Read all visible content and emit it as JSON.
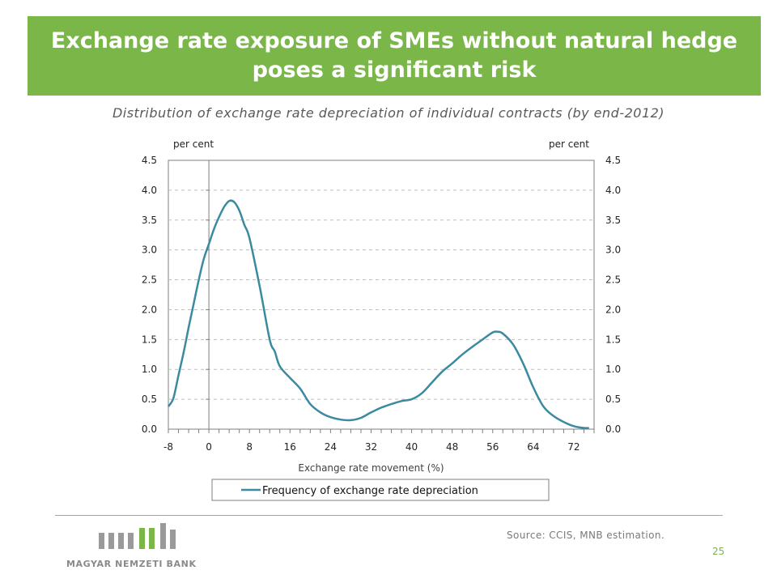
{
  "header": {
    "title_line1": "Exchange rate exposure of SMEs without natural hedge",
    "title_line2": "poses a significant risk"
  },
  "subtitle": "Distribution of exchange rate depreciation of individual contracts (by end-2012)",
  "colors": {
    "title_band": "#7ab648",
    "series_line": "#3a8aa0"
  },
  "chart_data": {
    "type": "line",
    "title": "",
    "xlabel": "Exchange rate movement (%)",
    "ylabel_left": "per cent",
    "ylabel_right": "per cent",
    "xlim": [
      -8,
      76
    ],
    "ylim": [
      0,
      4.5
    ],
    "x_ticks": [
      "-8",
      "0",
      "8",
      "16",
      "24",
      "32",
      "40",
      "48",
      "56",
      "64",
      "72"
    ],
    "y_ticks": [
      "0.0",
      "0.5",
      "1.0",
      "1.5",
      "2.0",
      "2.5",
      "3.0",
      "3.5",
      "4.0",
      "4.5"
    ],
    "legend_position": "bottom",
    "series": [
      {
        "name": "Frequency of exchange rate depreciation",
        "x": [
          -8,
          -7,
          -6,
          -5,
          -4,
          -3,
          -2,
          -1,
          0,
          1,
          2,
          3,
          4,
          5,
          6,
          7,
          8,
          10,
          12,
          13,
          14,
          16,
          18,
          20,
          22,
          24,
          26,
          28,
          30,
          32,
          34,
          36,
          38,
          40,
          42,
          44,
          46,
          48,
          50,
          52,
          54,
          56,
          57,
          58,
          60,
          62,
          64,
          66,
          68,
          70,
          72,
          74,
          75
        ],
        "values": [
          0.38,
          0.52,
          0.9,
          1.28,
          1.7,
          2.1,
          2.5,
          2.85,
          3.1,
          3.35,
          3.55,
          3.72,
          3.82,
          3.8,
          3.66,
          3.42,
          3.2,
          2.4,
          1.5,
          1.3,
          1.05,
          0.86,
          0.68,
          0.42,
          0.28,
          0.2,
          0.16,
          0.15,
          0.19,
          0.28,
          0.36,
          0.42,
          0.47,
          0.5,
          0.6,
          0.78,
          0.96,
          1.1,
          1.25,
          1.38,
          1.5,
          1.62,
          1.63,
          1.6,
          1.42,
          1.1,
          0.7,
          0.38,
          0.22,
          0.12,
          0.05,
          0.02,
          0.02
        ]
      }
    ]
  },
  "footer": {
    "source": "Source: CCIS, MNB estimation.",
    "page_number": "25",
    "bank_name": "MAGYAR NEMZETI BANK"
  }
}
